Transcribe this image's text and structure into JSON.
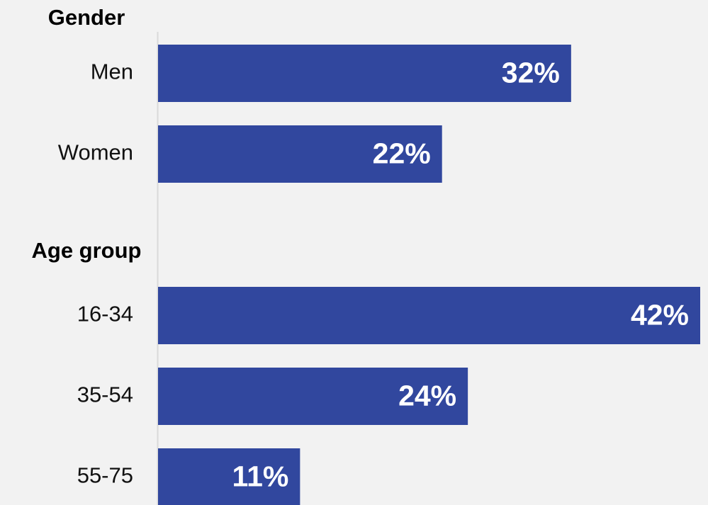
{
  "chart_data": {
    "type": "bar",
    "color": "#31479e",
    "groups": [
      {
        "name": "Gender",
        "categories": [
          "Men",
          "Women"
        ],
        "values": [
          32,
          22
        ],
        "value_labels": [
          "32%",
          "22%"
        ]
      },
      {
        "name": "Age group",
        "categories": [
          "16-34",
          "35-54",
          "55-75"
        ],
        "values": [
          42,
          24,
          11
        ],
        "value_labels": [
          "42%",
          "24%",
          "11%"
        ]
      }
    ]
  }
}
